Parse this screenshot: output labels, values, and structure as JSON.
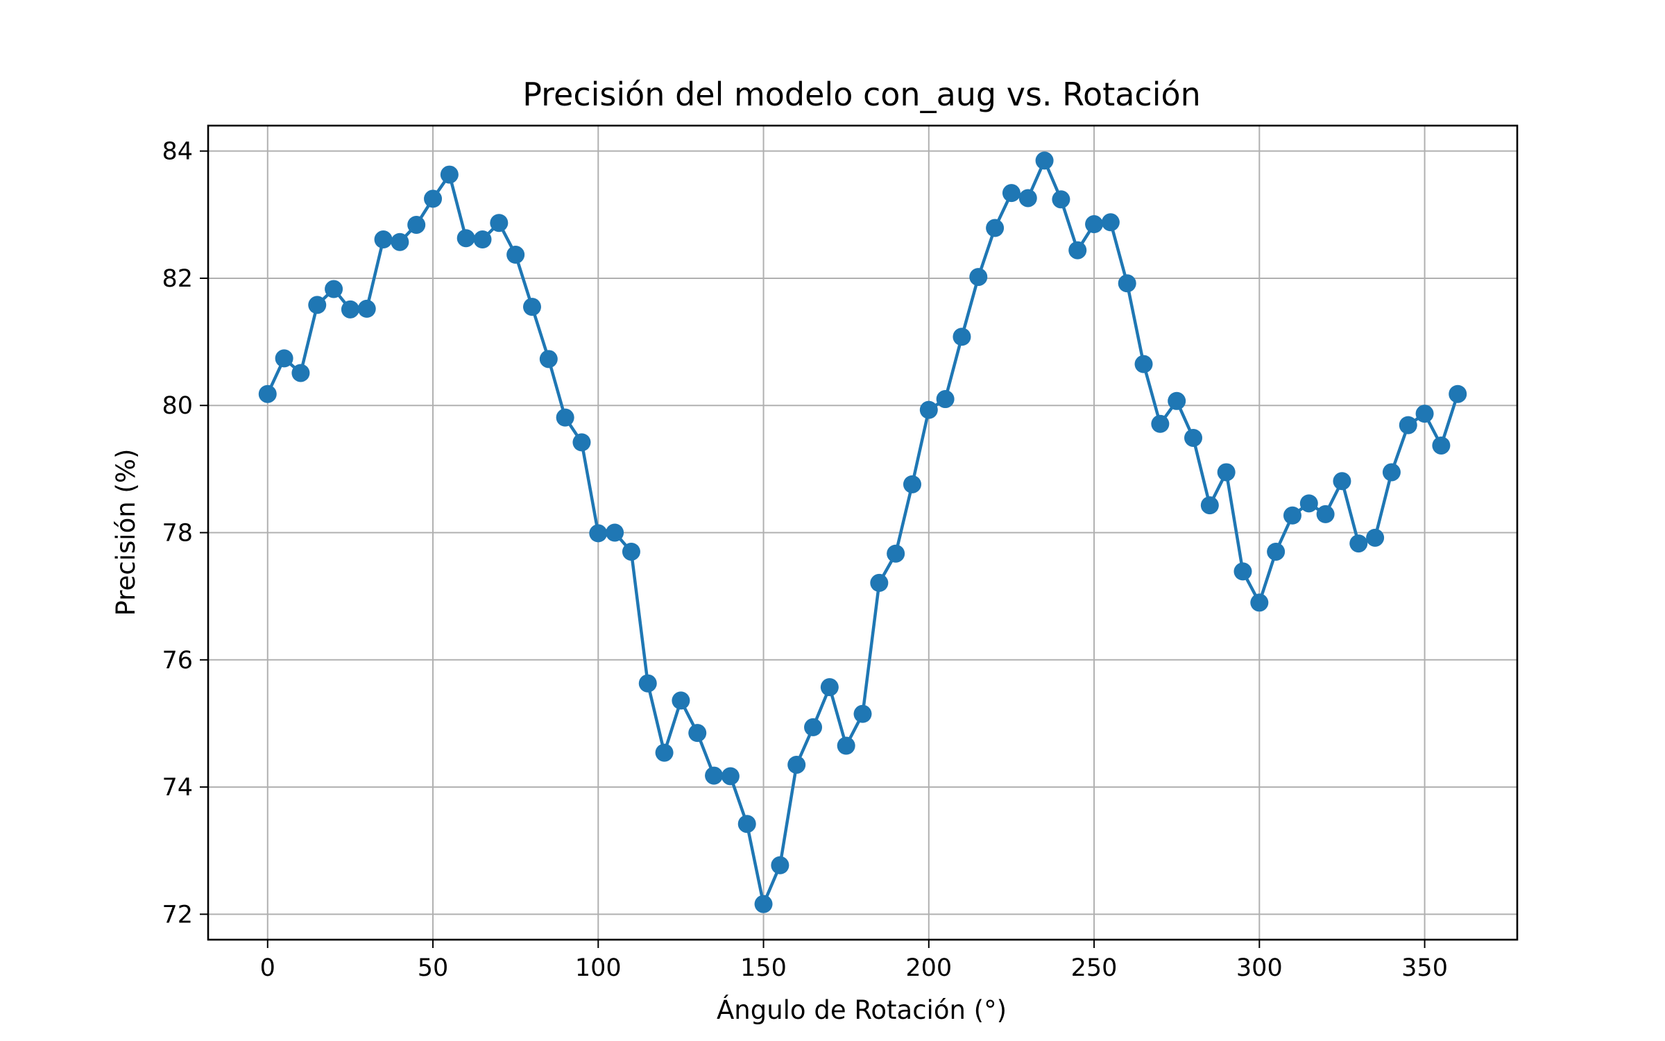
{
  "chart_data": {
    "type": "line",
    "title": "Precisión del modelo con_aug vs. Rotación",
    "xlabel": "Ángulo de Rotación (°)",
    "ylabel": "Precisión (%)",
    "xlim": [
      -18,
      378
    ],
    "ylim": [
      71.6,
      84.4
    ],
    "xticks": [
      0,
      50,
      100,
      150,
      200,
      250,
      300,
      350
    ],
    "yticks": [
      72,
      74,
      76,
      78,
      80,
      82,
      84
    ],
    "grid": true,
    "legend": "none",
    "marker": "circle",
    "color": "#1f77b4",
    "series": [
      {
        "x": [
          0,
          5,
          10,
          15,
          20,
          25,
          30,
          35,
          40,
          45,
          50,
          55,
          60,
          65,
          70,
          75,
          80,
          85,
          90,
          95,
          100,
          105,
          110,
          115,
          120,
          125,
          130,
          135,
          140,
          145,
          150,
          155,
          160,
          165,
          170,
          175,
          180,
          185,
          190,
          195,
          200,
          205,
          210,
          215,
          220,
          225,
          230,
          235,
          240,
          245,
          250,
          255,
          260,
          265,
          270,
          275,
          280,
          285,
          290,
          295,
          300,
          305,
          310,
          315,
          320,
          325,
          330,
          335,
          340,
          345,
          350,
          355,
          360
        ],
        "values": [
          80.18,
          80.74,
          80.51,
          81.58,
          81.83,
          81.51,
          81.52,
          82.61,
          82.57,
          82.84,
          83.25,
          83.63,
          82.63,
          82.61,
          82.87,
          82.37,
          81.55,
          80.73,
          79.81,
          79.42,
          77.99,
          78.0,
          77.7,
          75.63,
          74.54,
          75.36,
          74.85,
          74.18,
          74.17,
          73.42,
          72.16,
          72.77,
          74.35,
          74.94,
          75.57,
          74.65,
          75.15,
          77.21,
          77.67,
          78.76,
          79.93,
          80.1,
          81.08,
          82.02,
          82.79,
          83.34,
          83.26,
          83.85,
          83.24,
          82.44,
          82.85,
          82.88,
          81.92,
          80.65,
          79.71,
          80.07,
          79.49,
          78.43,
          78.95,
          77.39,
          76.9,
          77.7,
          78.27,
          78.46,
          78.29,
          78.81,
          77.83,
          77.92,
          78.95,
          79.69,
          79.87,
          79.37,
          80.18
        ]
      }
    ]
  }
}
